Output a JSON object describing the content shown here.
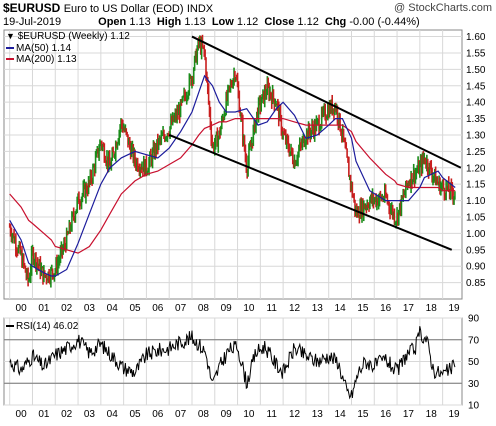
{
  "header": {
    "symbol": "$EURUSD",
    "name": "Euro to US Dollar (EOD)",
    "exchange": "INDX",
    "date": "19-Jul-2019",
    "open_label": "Open",
    "open": "1.13",
    "high_label": "High",
    "high": "1.13",
    "low_label": "Low",
    "low": "1.12",
    "close_label": "Close",
    "close": "1.12",
    "chg_label": "Chg",
    "chg": "-0.00 (-0.44%)",
    "watermark": "@ StockCharts.com"
  },
  "legend": {
    "price": "$EURUSD (Weekly) 1.12",
    "ma50": "MA(50) 1.14",
    "ma200": "MA(200) 1.13",
    "rsi": "RSI(14) 46.02"
  },
  "colors": {
    "up": "#1a8c1a",
    "down": "#c81e1e",
    "ma50": "#1c1c9c",
    "ma200": "#c8102e",
    "channel": "#000000",
    "grid": "#d8d8d8",
    "rsi": "#000000"
  },
  "chart_data": [
    {
      "type": "line",
      "title": "$EURUSD (Weekly)",
      "x": [
        2000.0,
        2000.5,
        2000.83,
        2001.0,
        2001.5,
        2001.83,
        2002.0,
        2002.5,
        2003.0,
        2003.5,
        2004.0,
        2004.4,
        2004.9,
        2005.5,
        2006.0,
        2006.5,
        2007.0,
        2007.5,
        2008.0,
        2008.3,
        2008.55,
        2008.9,
        2009.2,
        2009.5,
        2009.9,
        2010.4,
        2010.9,
        2011.3,
        2011.7,
        2012.0,
        2012.5,
        2013.0,
        2013.5,
        2014.0,
        2014.3,
        2014.6,
        2015.0,
        2015.2,
        2015.8,
        2016.5,
        2016.9,
        2017.0,
        2017.5,
        2018.0,
        2018.2,
        2018.8,
        2019.0,
        2019.55
      ],
      "series": [
        {
          "name": "$EURUSD",
          "values": [
            1.02,
            0.93,
            0.85,
            0.94,
            0.87,
            0.88,
            0.89,
            0.98,
            1.1,
            1.15,
            1.28,
            1.2,
            1.34,
            1.22,
            1.2,
            1.27,
            1.32,
            1.38,
            1.48,
            1.58,
            1.55,
            1.26,
            1.3,
            1.4,
            1.5,
            1.2,
            1.38,
            1.44,
            1.4,
            1.3,
            1.22,
            1.3,
            1.33,
            1.38,
            1.39,
            1.3,
            1.14,
            1.06,
            1.1,
            1.11,
            1.05,
            1.05,
            1.16,
            1.2,
            1.23,
            1.15,
            1.14,
            1.12
          ]
        },
        {
          "name": "MA(50)",
          "values": [
            1.04,
            0.98,
            0.91,
            0.9,
            0.88,
            0.87,
            0.87,
            0.89,
            0.97,
            1.06,
            1.15,
            1.2,
            1.23,
            1.25,
            1.24,
            1.23,
            1.26,
            1.31,
            1.37,
            1.43,
            1.48,
            1.45,
            1.4,
            1.37,
            1.37,
            1.38,
            1.33,
            1.34,
            1.38,
            1.4,
            1.36,
            1.29,
            1.3,
            1.33,
            1.35,
            1.35,
            1.29,
            1.22,
            1.13,
            1.1,
            1.1,
            1.1,
            1.1,
            1.14,
            1.17,
            1.19,
            1.17,
            1.14
          ]
        },
        {
          "name": "MA(200)",
          "values": [
            1.12,
            1.08,
            1.04,
            1.03,
            1.0,
            0.98,
            0.96,
            0.95,
            0.94,
            0.96,
            1.01,
            1.06,
            1.12,
            1.16,
            1.18,
            1.19,
            1.21,
            1.23,
            1.27,
            1.3,
            1.32,
            1.33,
            1.34,
            1.34,
            1.35,
            1.35,
            1.35,
            1.35,
            1.35,
            1.35,
            1.34,
            1.33,
            1.33,
            1.33,
            1.33,
            1.33,
            1.31,
            1.28,
            1.23,
            1.18,
            1.16,
            1.15,
            1.14,
            1.14,
            1.14,
            1.14,
            1.13,
            1.13
          ]
        }
      ],
      "channel_lines": [
        {
          "from": [
            2008.0,
            1.6
          ],
          "to": [
            2019.8,
            1.2
          ]
        },
        {
          "from": [
            2007.0,
            1.3
          ],
          "to": [
            2019.4,
            0.95
          ]
        }
      ],
      "ylim": [
        0.8,
        1.62
      ],
      "y_ticks": [
        0.85,
        0.9,
        0.95,
        1.0,
        1.05,
        1.1,
        1.15,
        1.2,
        1.25,
        1.3,
        1.35,
        1.4,
        1.45,
        1.5,
        1.55,
        1.6
      ],
      "xlim": [
        1999.75,
        2019.85
      ],
      "x_tick_labels": [
        "00",
        "01",
        "02",
        "03",
        "04",
        "05",
        "06",
        "07",
        "08",
        "09",
        "10",
        "11",
        "12",
        "13",
        "14",
        "15",
        "16",
        "17",
        "18",
        "19"
      ],
      "grid": true,
      "legend_position": "top-left"
    },
    {
      "type": "line",
      "title": "RSI(14)",
      "x": [
        2000.0,
        2000.5,
        2001.0,
        2001.5,
        2002.0,
        2002.5,
        2003.0,
        2003.5,
        2004.0,
        2004.5,
        2005.0,
        2005.5,
        2006.0,
        2006.5,
        2007.0,
        2007.5,
        2008.0,
        2008.3,
        2008.6,
        2008.9,
        2009.2,
        2009.6,
        2010.0,
        2010.4,
        2010.8,
        2011.2,
        2011.6,
        2012.0,
        2012.5,
        2013.0,
        2013.5,
        2014.0,
        2014.4,
        2014.8,
        2015.0,
        2015.3,
        2015.6,
        2016.0,
        2016.5,
        2017.0,
        2017.4,
        2017.8,
        2018.0,
        2018.3,
        2018.6,
        2019.0,
        2019.55
      ],
      "values": [
        50,
        42,
        55,
        45,
        56,
        62,
        70,
        58,
        66,
        55,
        44,
        40,
        56,
        60,
        62,
        68,
        72,
        66,
        58,
        28,
        45,
        60,
        64,
        30,
        58,
        64,
        50,
        40,
        62,
        55,
        50,
        55,
        50,
        22,
        18,
        40,
        50,
        46,
        52,
        40,
        56,
        62,
        76,
        70,
        42,
        38,
        46
      ],
      "ylim": [
        10,
        90
      ],
      "y_ticks": [
        10,
        30,
        50,
        70,
        90
      ],
      "reference_lines": [
        30,
        70
      ],
      "x_tick_labels": [
        "00",
        "01",
        "02",
        "03",
        "04",
        "05",
        "06",
        "07",
        "08",
        "09",
        "10",
        "11",
        "12",
        "13",
        "14",
        "15",
        "16",
        "17",
        "18",
        "19"
      ]
    }
  ]
}
